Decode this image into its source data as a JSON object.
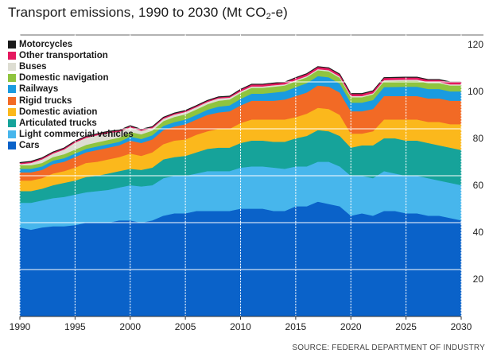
{
  "title_pre": "Transport emissions, 1990 to 2030 (Mt CO",
  "title_sub": "2",
  "title_post": "-e)",
  "source": "SOURCE: FEDERAL DEPARTMENT OF INDUSTRY",
  "chart_data": {
    "type": "area",
    "stacked": true,
    "title": "Transport emissions, 1990 to 2030 (Mt CO2-e)",
    "xlabel": "",
    "ylabel": "",
    "xlim": [
      1990,
      2030
    ],
    "ylim": [
      0,
      120
    ],
    "x_ticks": [
      1990,
      1995,
      2000,
      2005,
      2010,
      2015,
      2020,
      2025,
      2030
    ],
    "y_ticks": [
      20,
      40,
      60,
      80,
      100,
      120
    ],
    "grid": true,
    "legend_position": "top-left",
    "x": [
      1990,
      1991,
      1992,
      1993,
      1994,
      1995,
      1996,
      1997,
      1998,
      1999,
      2000,
      2001,
      2002,
      2003,
      2004,
      2005,
      2006,
      2007,
      2008,
      2009,
      2010,
      2011,
      2012,
      2013,
      2014,
      2015,
      2016,
      2017,
      2018,
      2019,
      2020,
      2021,
      2022,
      2023,
      2024,
      2025,
      2026,
      2027,
      2028,
      2029,
      2030
    ],
    "series": [
      {
        "name": "Cars",
        "color": "#0a62c9",
        "values": [
          38,
          37,
          38,
          38.5,
          38.5,
          39,
          40,
          40,
          40,
          41,
          41,
          40,
          41,
          43,
          44,
          44,
          45,
          45,
          45,
          45,
          46,
          46,
          46,
          45,
          45,
          47,
          47,
          49,
          48,
          47,
          43,
          44,
          43,
          45,
          45,
          44,
          44,
          43,
          43,
          42,
          41
        ]
      },
      {
        "name": "Light commercial vehicles",
        "color": "#47b6ec",
        "values": [
          10.5,
          11.5,
          11.5,
          12,
          12.5,
          13,
          13,
          13.5,
          14,
          14,
          15,
          15.5,
          15,
          16,
          16,
          16,
          16,
          17,
          17,
          17,
          17.5,
          18,
          18,
          18.5,
          18,
          17,
          17,
          17,
          18,
          17,
          17,
          16,
          16,
          17,
          16,
          16,
          16,
          16,
          15,
          15,
          15
        ]
      },
      {
        "name": "Articulated trucks",
        "color": "#16a39a",
        "values": [
          5,
          5,
          5,
          5.5,
          6,
          6,
          6.5,
          6.5,
          7,
          7,
          7,
          7,
          7.5,
          8,
          8,
          8.5,
          9,
          9.5,
          10,
          10,
          10.5,
          11,
          11,
          11,
          11.5,
          12,
          13,
          13.5,
          13,
          13,
          12,
          13,
          14,
          14,
          15,
          15,
          15,
          15,
          15,
          15,
          15
        ]
      },
      {
        "name": "Domestic aviation",
        "color": "#fbb81c",
        "values": [
          4.5,
          4.5,
          4.5,
          5,
          5,
          5.5,
          6,
          6,
          6,
          6,
          6.5,
          6,
          6.5,
          6.5,
          7,
          7,
          7.5,
          7.5,
          8,
          8,
          8.5,
          9,
          9,
          9.5,
          9.5,
          9,
          9.5,
          9.5,
          9.5,
          9,
          6,
          5,
          6,
          8,
          8,
          9,
          9,
          9,
          10,
          10,
          11
        ]
      },
      {
        "name": "Rigid trucks",
        "color": "#f26a25",
        "values": [
          3.5,
          3.5,
          3.5,
          4,
          4,
          4.5,
          4.5,
          5,
          5,
          5,
          5.5,
          5.5,
          5.5,
          6,
          6,
          6.5,
          6.5,
          7,
          7,
          7.5,
          7.5,
          8,
          8,
          8,
          8.5,
          9,
          9,
          9.5,
          9.5,
          9.5,
          9.5,
          9.5,
          9.5,
          10,
          10,
          10,
          10,
          10,
          10,
          10,
          10
        ]
      },
      {
        "name": "Railways",
        "color": "#1a9be0",
        "values": [
          1.5,
          1.5,
          1.5,
          1.5,
          1.5,
          1.5,
          1.5,
          1.5,
          1.5,
          1.5,
          1.7,
          1.7,
          1.8,
          1.8,
          1.9,
          2,
          2,
          2.2,
          2.5,
          2.5,
          2.8,
          3,
          3,
          3.5,
          3.5,
          3.8,
          4,
          4,
          4,
          3.8,
          3.7,
          3.7,
          3.8,
          3.8,
          3.9,
          4,
          4,
          4,
          4,
          4,
          4
        ]
      },
      {
        "name": "Domestic navigation",
        "color": "#8fc43f",
        "values": [
          1.5,
          1.5,
          1.5,
          1.5,
          1.7,
          1.7,
          1.7,
          1.8,
          1.8,
          1.8,
          2,
          2,
          2,
          2,
          2.2,
          2.2,
          2.3,
          2.3,
          2.5,
          2.5,
          2.5,
          2.5,
          2.5,
          2.5,
          2.5,
          2.5,
          2.5,
          2.5,
          2.5,
          2.5,
          2.3,
          2.3,
          2.4,
          2.5,
          2.5,
          2.5,
          2.5,
          2.5,
          2.5,
          2.5,
          2.5
        ]
      },
      {
        "name": "Buses",
        "color": "#ddddd2",
        "values": [
          0.5,
          1,
          1.5,
          1.5,
          2,
          3,
          3,
          3,
          3,
          2.5,
          2,
          1.5,
          1,
          1,
          1,
          1,
          1,
          1,
          1,
          0.8,
          0.7,
          0.6,
          0.6,
          0.6,
          0.5,
          0.5,
          0.5,
          0.5,
          0.5,
          0.5,
          0.5,
          0.5,
          0.5,
          0.5,
          0.5,
          0.5,
          0.5,
          0.5,
          0.5,
          0.5,
          0.5
        ]
      },
      {
        "name": "Other transportation",
        "color": "#e5195f",
        "values": [
          0.5,
          0.5,
          0.5,
          0.5,
          0.5,
          0.5,
          0.5,
          0.5,
          0.5,
          0.5,
          0.5,
          0.5,
          0.5,
          0.5,
          0.5,
          0.5,
          0.5,
          0.5,
          0.5,
          0.5,
          0.7,
          0.8,
          0.8,
          0.8,
          0.8,
          0.9,
          0.9,
          0.9,
          0.9,
          0.9,
          0.9,
          0.9,
          0.9,
          0.9,
          0.9,
          0.9,
          0.9,
          0.9,
          0.9,
          0.9,
          0.9
        ]
      },
      {
        "name": "Motorcycles",
        "color": "#1b1b1b",
        "values": [
          0.2,
          0.2,
          0.2,
          0.2,
          0.2,
          0.2,
          0.2,
          0.2,
          0.2,
          0.2,
          0.2,
          0.2,
          0.2,
          0.2,
          0.2,
          0.2,
          0.2,
          0.2,
          0.2,
          0.2,
          0.2,
          0.2,
          0.2,
          0.2,
          0.2,
          0.2,
          0.2,
          0.2,
          0.2,
          0.2,
          0.2,
          0.2,
          0.2,
          0.2,
          0.2,
          0.2,
          0.2,
          0.2,
          0.2,
          0.2,
          0.2
        ]
      }
    ]
  }
}
